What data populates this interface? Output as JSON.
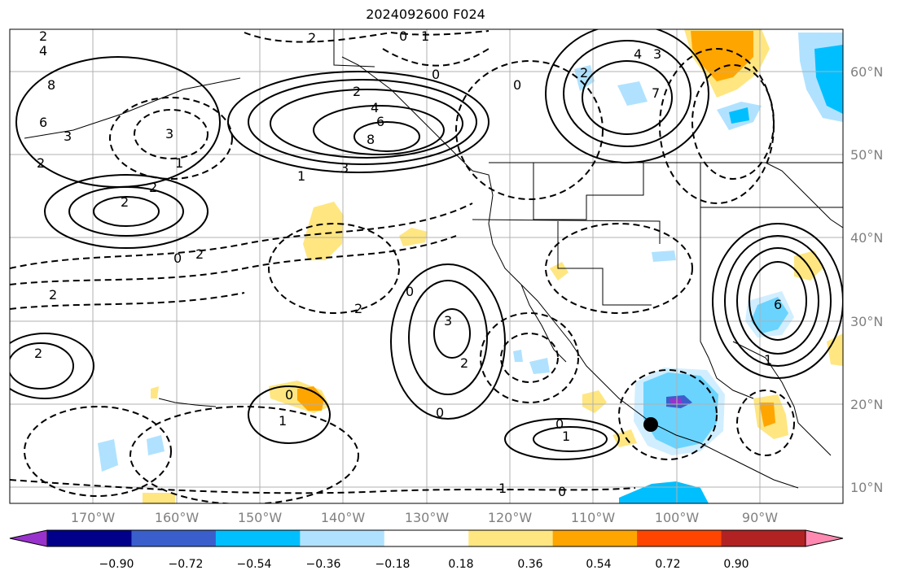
{
  "title": "2024092600 F024",
  "lat_labels": [
    "60°N",
    "50°N",
    "40°N",
    "30°N",
    "20°N",
    "10°N"
  ],
  "lon_labels": [
    "170°W",
    "160°W",
    "150°W",
    "140°W",
    "130°W",
    "120°W",
    "110°W",
    "100°W",
    "90°W"
  ],
  "colorbar": {
    "ticks": [
      "−0.90",
      "−0.72",
      "−0.54",
      "−0.36",
      "−0.18",
      "0.18",
      "0.36",
      "0.54",
      "0.72",
      "0.90"
    ],
    "colors": [
      "#9932cc",
      "#00008b",
      "#3a5fcd",
      "#00bfff",
      "#b0e2ff",
      "#ffffff",
      "#ffe680",
      "#ffa500",
      "#ff4500",
      "#b22222",
      "#ff89b0"
    ]
  },
  "contour_labels": [
    "2",
    "4",
    "8",
    "6",
    "3",
    "2",
    "1",
    "3",
    "2",
    "2",
    "4",
    "6",
    "8",
    "3",
    "1",
    "2",
    "0",
    "1",
    "0",
    "4",
    "3",
    "7",
    "0",
    "2",
    "0",
    "2",
    "2",
    "3",
    "2",
    "2",
    "0",
    "1",
    "0",
    "0",
    "1",
    "0",
    "0",
    "1",
    "2",
    "2",
    "6",
    "1"
  ],
  "colors": {
    "negative_dashed": "#000000",
    "positive_solid": "#000000",
    "grid": "#b0b0b0"
  }
}
